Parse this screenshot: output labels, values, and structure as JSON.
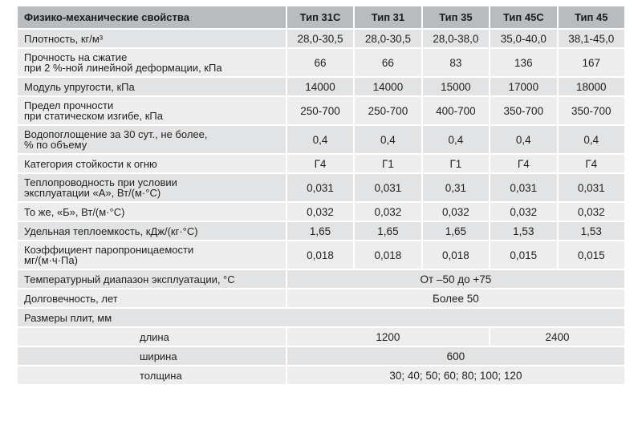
{
  "table": {
    "header": {
      "property": "Физико-механические свойства",
      "types": [
        "Тип 31С",
        "Тип 31",
        "Тип 35",
        "Тип 45С",
        "Тип 45"
      ]
    },
    "rows": [
      {
        "label": "Плотность, кг/м³",
        "values": [
          "28,0-30,5",
          "28,0-30,5",
          "28,0-38,0",
          "35,0-40,0",
          "38,1-45,0"
        ]
      },
      {
        "label_lines": [
          "Прочность на сжатие",
          "при 2 %-ной линейной деформации, кПа"
        ],
        "values": [
          "66",
          "66",
          "83",
          "136",
          "167"
        ]
      },
      {
        "label": "Модуль упругости, кПа",
        "values": [
          "14000",
          "14000",
          "15000",
          "17000",
          "18000"
        ]
      },
      {
        "label_lines": [
          "Предел прочности",
          "при статическом изгибе, кПа"
        ],
        "values": [
          "250-700",
          "250-700",
          "400-700",
          "350-700",
          "350-700"
        ]
      },
      {
        "label_lines": [
          "Водопоглощение за 30 сут., не более,",
          "% по объему"
        ],
        "values": [
          "0,4",
          "0,4",
          "0,4",
          "0,4",
          "0,4"
        ]
      },
      {
        "label": "Категория стойкости к огню",
        "values": [
          "Г4",
          "Г1",
          "Г1",
          "Г4",
          "Г4"
        ]
      },
      {
        "label_lines": [
          "Теплопроводность при условии",
          "эксплуатации «А», Вт/(м·°С)"
        ],
        "values": [
          "0,031",
          "0,031",
          "0,31",
          "0,031",
          "0,031"
        ]
      },
      {
        "label": "То же, «Б», Вт/(м·°С)",
        "values": [
          "0,032",
          "0,032",
          "0,032",
          "0,032",
          "0,032"
        ]
      },
      {
        "label": "Удельная теплоемкость, кДж/(кг·°С)",
        "values": [
          "1,65",
          "1,65",
          "1,65",
          "1,53",
          "1,53"
        ]
      },
      {
        "label_lines": [
          "Коэффициент паропроницаемости",
          "мг/(м·ч·Па)"
        ],
        "values": [
          "0,018",
          "0,018",
          "0,018",
          "0,015",
          "0,015"
        ]
      },
      {
        "label": "Температурный диапазон эксплуатации, °С",
        "merged": "От –50 до +75"
      },
      {
        "label": "Долговечность, лет",
        "merged": "Более 50"
      },
      {
        "label": "Размеры плит, мм"
      },
      {
        "label": "длина",
        "groups": [
          "1200",
          "2400"
        ]
      },
      {
        "label": "ширина",
        "merged": "600"
      },
      {
        "label": "толщина",
        "merged": "30; 40; 50; 60; 80; 100; 120"
      }
    ]
  }
}
